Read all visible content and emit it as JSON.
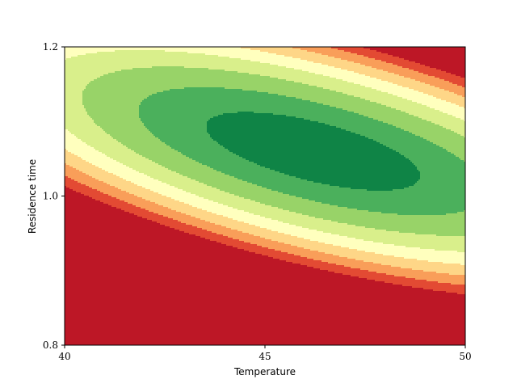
{
  "chart_data": {
    "type": "contour",
    "xlabel": "Temperature",
    "ylabel": "Residence time",
    "xlim": [
      40,
      50
    ],
    "ylim": [
      0.8,
      1.2
    ],
    "x_ticks": [
      "40",
      "45",
      "50"
    ],
    "y_ticks": [
      "0.8",
      "1.0",
      "1.2"
    ],
    "x_tick_values": [
      40,
      45,
      50
    ],
    "y_tick_values": [
      0.8,
      1.0,
      1.2
    ],
    "colormap": "RdYlGn",
    "grid": false,
    "levels": [
      {
        "min": 0.0,
        "max": 0.12,
        "color": "#bd1726"
      },
      {
        "min": 0.12,
        "max": 0.24,
        "color": "#e34a33"
      },
      {
        "min": 0.24,
        "max": 0.36,
        "color": "#f99e59"
      },
      {
        "min": 0.36,
        "max": 0.48,
        "color": "#fed687"
      },
      {
        "min": 0.48,
        "max": 0.6,
        "color": "#ffffbe"
      },
      {
        "min": 0.6,
        "max": 0.72,
        "color": "#d9ef8b"
      },
      {
        "min": 0.72,
        "max": 0.84,
        "color": "#98d368"
      },
      {
        "min": 0.84,
        "max": 0.94,
        "color": "#4bb05c"
      },
      {
        "min": 0.94,
        "max": 1.0,
        "color": "#0f8446"
      }
    ],
    "optimum": {
      "temperature": 46.2,
      "residence_time": 1.06
    }
  }
}
